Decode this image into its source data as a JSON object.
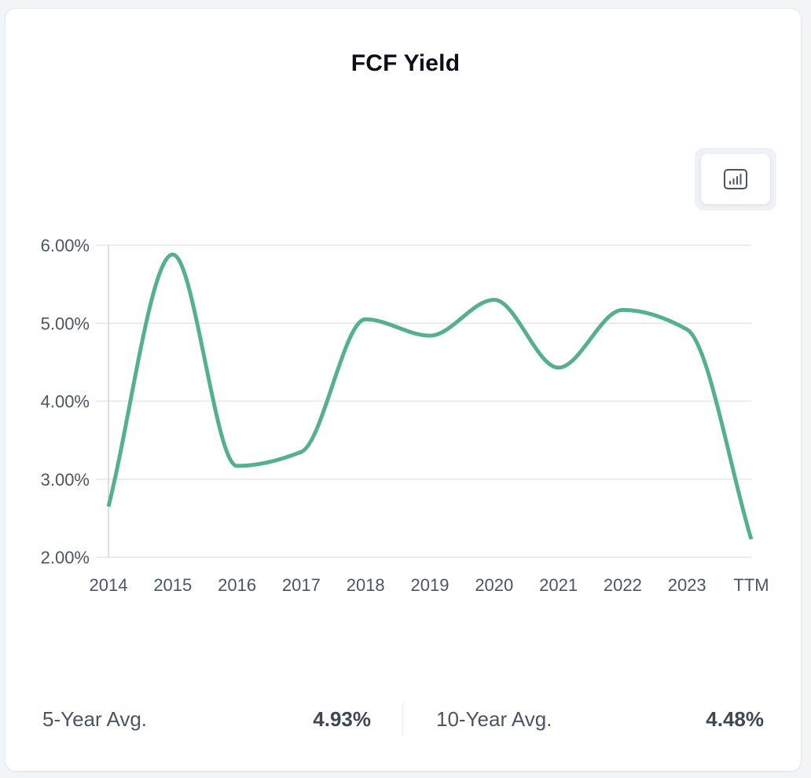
{
  "chart_data": {
    "type": "line",
    "title": "FCF Yield",
    "categories": [
      "2014",
      "2015",
      "2016",
      "2017",
      "2018",
      "2019",
      "2020",
      "2021",
      "2022",
      "2023",
      "TTM"
    ],
    "series": [
      {
        "values": [
          2.65,
          5.88,
          3.17,
          3.35,
          5.05,
          4.84,
          5.3,
          4.43,
          5.17,
          4.92,
          2.23
        ],
        "color": "#55b08e"
      }
    ],
    "y_ticks": [
      "2.00%",
      "3.00%",
      "4.00%",
      "5.00%",
      "6.00%"
    ],
    "ylim": [
      2,
      6
    ],
    "grid": true,
    "legend": "none"
  },
  "controls": {
    "chart_type_icon": "bar-chart-icon"
  },
  "stats": {
    "five_year_label": "5-Year Avg.",
    "five_year_value": "4.93%",
    "ten_year_label": "10-Year Avg.",
    "ten_year_value": "4.48%"
  }
}
